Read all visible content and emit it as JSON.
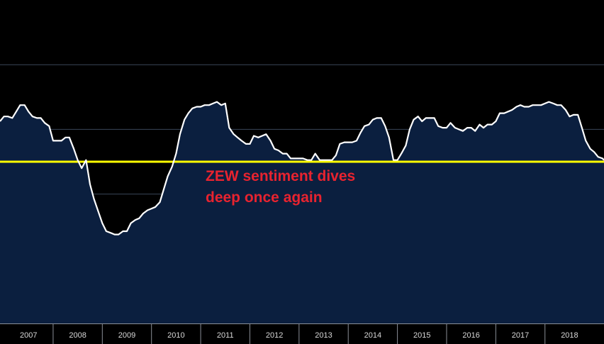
{
  "chart_data": {
    "type": "area",
    "title": "",
    "xlabel": "",
    "ylabel": "",
    "x_tick_labels": [
      "2007",
      "2008",
      "2009",
      "2010",
      "2011",
      "2012",
      "2013",
      "2014",
      "2015",
      "2016",
      "2017",
      "2018"
    ],
    "xlim": [
      2006.92,
      2019.2
    ],
    "ylim": [
      -100,
      100
    ],
    "grid": true,
    "reference_line": {
      "value": 0,
      "color": "#ffff00"
    },
    "annotation": {
      "line1": "ZEW sentiment dives",
      "line2": "deep once again"
    },
    "series": [
      {
        "color": "#ffffff",
        "fill": "#0b1f3f",
        "points": [
          [
            2006.92,
            25
          ],
          [
            2007.0,
            28
          ],
          [
            2007.08,
            28
          ],
          [
            2007.17,
            27
          ],
          [
            2007.25,
            31
          ],
          [
            2007.33,
            35
          ],
          [
            2007.42,
            35
          ],
          [
            2007.5,
            31
          ],
          [
            2007.58,
            28
          ],
          [
            2007.67,
            27
          ],
          [
            2007.75,
            27
          ],
          [
            2007.83,
            24
          ],
          [
            2007.92,
            22
          ],
          [
            2008.0,
            13
          ],
          [
            2008.08,
            13
          ],
          [
            2008.17,
            13
          ],
          [
            2008.25,
            15
          ],
          [
            2008.33,
            15
          ],
          [
            2008.42,
            8
          ],
          [
            2008.5,
            1
          ],
          [
            2008.58,
            -4
          ],
          [
            2008.67,
            1
          ],
          [
            2008.75,
            -14
          ],
          [
            2008.83,
            -23
          ],
          [
            2008.92,
            -31
          ],
          [
            2009.0,
            -38
          ],
          [
            2009.08,
            -43
          ],
          [
            2009.17,
            -44
          ],
          [
            2009.25,
            -45
          ],
          [
            2009.33,
            -45
          ],
          [
            2009.42,
            -43
          ],
          [
            2009.5,
            -43
          ],
          [
            2009.58,
            -38
          ],
          [
            2009.67,
            -36
          ],
          [
            2009.75,
            -35
          ],
          [
            2009.83,
            -32
          ],
          [
            2009.92,
            -30
          ],
          [
            2010.0,
            -29
          ],
          [
            2010.08,
            -28
          ],
          [
            2010.17,
            -25
          ],
          [
            2010.25,
            -17
          ],
          [
            2010.33,
            -9
          ],
          [
            2010.42,
            -3
          ],
          [
            2010.5,
            5
          ],
          [
            2010.58,
            17
          ],
          [
            2010.67,
            26
          ],
          [
            2010.75,
            30
          ],
          [
            2010.83,
            33
          ],
          [
            2010.92,
            34
          ],
          [
            2011.0,
            34
          ],
          [
            2011.08,
            35
          ],
          [
            2011.17,
            35
          ],
          [
            2011.25,
            36
          ],
          [
            2011.33,
            37
          ],
          [
            2011.42,
            35
          ],
          [
            2011.5,
            36
          ],
          [
            2011.58,
            21
          ],
          [
            2011.67,
            17
          ],
          [
            2011.75,
            15
          ],
          [
            2011.83,
            13
          ],
          [
            2011.92,
            11
          ],
          [
            2012.0,
            11
          ],
          [
            2012.08,
            16
          ],
          [
            2012.17,
            15
          ],
          [
            2012.25,
            16
          ],
          [
            2012.33,
            17
          ],
          [
            2012.42,
            13
          ],
          [
            2012.5,
            8
          ],
          [
            2012.58,
            7
          ],
          [
            2012.67,
            5
          ],
          [
            2012.75,
            5
          ],
          [
            2012.83,
            2
          ],
          [
            2012.92,
            2
          ],
          [
            2013.0,
            2
          ],
          [
            2013.08,
            2
          ],
          [
            2013.17,
            1
          ],
          [
            2013.25,
            1
          ],
          [
            2013.33,
            5
          ],
          [
            2013.42,
            1
          ],
          [
            2013.5,
            1
          ],
          [
            2013.58,
            1
          ],
          [
            2013.67,
            1
          ],
          [
            2013.75,
            4
          ],
          [
            2013.83,
            11
          ],
          [
            2013.92,
            12
          ],
          [
            2014.0,
            12
          ],
          [
            2014.08,
            12
          ],
          [
            2014.17,
            13
          ],
          [
            2014.25,
            18
          ],
          [
            2014.33,
            22
          ],
          [
            2014.42,
            23
          ],
          [
            2014.5,
            26
          ],
          [
            2014.58,
            27
          ],
          [
            2014.67,
            27
          ],
          [
            2014.75,
            22
          ],
          [
            2014.83,
            15
          ],
          [
            2014.92,
            1
          ],
          [
            2015.0,
            1
          ],
          [
            2015.08,
            5
          ],
          [
            2015.17,
            10
          ],
          [
            2015.25,
            20
          ],
          [
            2015.33,
            26
          ],
          [
            2015.42,
            28
          ],
          [
            2015.5,
            25
          ],
          [
            2015.58,
            27
          ],
          [
            2015.67,
            27
          ],
          [
            2015.75,
            27
          ],
          [
            2015.83,
            22
          ],
          [
            2015.92,
            21
          ],
          [
            2016.0,
            21
          ],
          [
            2016.08,
            24
          ],
          [
            2016.17,
            21
          ],
          [
            2016.25,
            20
          ],
          [
            2016.33,
            19
          ],
          [
            2016.42,
            21
          ],
          [
            2016.5,
            21
          ],
          [
            2016.58,
            19
          ],
          [
            2016.67,
            23
          ],
          [
            2016.75,
            21
          ],
          [
            2016.83,
            23
          ],
          [
            2016.92,
            23
          ],
          [
            2017.0,
            25
          ],
          [
            2017.08,
            30
          ],
          [
            2017.17,
            30
          ],
          [
            2017.25,
            31
          ],
          [
            2017.33,
            32
          ],
          [
            2017.42,
            34
          ],
          [
            2017.5,
            35
          ],
          [
            2017.58,
            34
          ],
          [
            2017.67,
            34
          ],
          [
            2017.75,
            35
          ],
          [
            2017.83,
            35
          ],
          [
            2017.92,
            35
          ],
          [
            2018.0,
            36
          ],
          [
            2018.08,
            37
          ],
          [
            2018.17,
            36
          ],
          [
            2018.25,
            35
          ],
          [
            2018.33,
            35
          ],
          [
            2018.42,
            32
          ],
          [
            2018.5,
            28
          ],
          [
            2018.58,
            29
          ],
          [
            2018.67,
            29
          ],
          [
            2018.75,
            21
          ],
          [
            2018.83,
            13
          ],
          [
            2018.92,
            8
          ],
          [
            2019.0,
            6
          ],
          [
            2019.08,
            3
          ],
          [
            2019.17,
            2
          ],
          [
            2019.2,
            1
          ]
        ]
      }
    ]
  }
}
